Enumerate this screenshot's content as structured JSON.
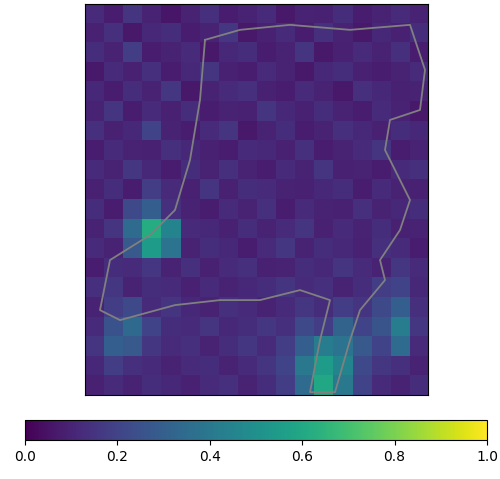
{
  "chart_data": {
    "type": "heatmap",
    "tick_labels": false,
    "cells": [
      [
        0.12,
        0.08,
        0.15,
        0.1,
        0.06,
        0.1,
        0.14,
        0.08,
        0.1,
        0.12,
        0.07,
        0.1,
        0.09,
        0.13,
        0.08,
        0.1,
        0.12,
        0.1
      ],
      [
        0.09,
        0.14,
        0.07,
        0.11,
        0.13,
        0.08,
        0.1,
        0.16,
        0.07,
        0.09,
        0.12,
        0.08,
        0.14,
        0.1,
        0.07,
        0.11,
        0.09,
        0.13
      ],
      [
        0.13,
        0.1,
        0.18,
        0.08,
        0.1,
        0.12,
        0.07,
        0.11,
        0.13,
        0.08,
        0.1,
        0.15,
        0.07,
        0.09,
        0.12,
        0.1,
        0.14,
        0.08
      ],
      [
        0.07,
        0.12,
        0.09,
        0.14,
        0.08,
        0.11,
        0.15,
        0.09,
        0.08,
        0.12,
        0.1,
        0.07,
        0.11,
        0.13,
        0.09,
        0.08,
        0.1,
        0.12
      ],
      [
        0.11,
        0.08,
        0.13,
        0.1,
        0.16,
        0.07,
        0.1,
        0.12,
        0.14,
        0.09,
        0.08,
        0.12,
        0.1,
        0.07,
        0.14,
        0.11,
        0.09,
        0.1
      ],
      [
        0.1,
        0.15,
        0.08,
        0.12,
        0.09,
        0.13,
        0.08,
        0.1,
        0.09,
        0.15,
        0.11,
        0.09,
        0.13,
        0.1,
        0.08,
        0.12,
        0.1,
        0.07
      ],
      [
        0.14,
        0.09,
        0.11,
        0.2,
        0.1,
        0.08,
        0.12,
        0.15,
        0.07,
        0.1,
        0.13,
        0.08,
        0.1,
        0.14,
        0.11,
        0.09,
        0.13,
        0.11
      ],
      [
        0.08,
        0.12,
        0.1,
        0.09,
        0.14,
        0.11,
        0.09,
        0.08,
        0.12,
        0.11,
        0.09,
        0.14,
        0.08,
        0.1,
        0.12,
        0.15,
        0.08,
        0.1
      ],
      [
        0.12,
        0.1,
        0.16,
        0.11,
        0.08,
        0.13,
        0.1,
        0.14,
        0.1,
        0.08,
        0.12,
        0.1,
        0.15,
        0.09,
        0.1,
        0.08,
        0.12,
        0.14
      ],
      [
        0.09,
        0.13,
        0.08,
        0.18,
        0.12,
        0.09,
        0.15,
        0.09,
        0.13,
        0.12,
        0.1,
        0.09,
        0.11,
        0.13,
        0.08,
        0.12,
        0.1,
        0.09
      ],
      [
        0.13,
        0.08,
        0.22,
        0.3,
        0.14,
        0.1,
        0.08,
        0.12,
        0.1,
        0.14,
        0.08,
        0.12,
        0.1,
        0.09,
        0.14,
        0.1,
        0.11,
        0.13
      ],
      [
        0.1,
        0.15,
        0.35,
        0.62,
        0.45,
        0.12,
        0.11,
        0.09,
        0.13,
        0.1,
        0.12,
        0.15,
        0.09,
        0.12,
        0.1,
        0.13,
        0.09,
        0.1
      ],
      [
        0.12,
        0.1,
        0.28,
        0.55,
        0.38,
        0.1,
        0.13,
        0.11,
        0.08,
        0.12,
        0.16,
        0.1,
        0.13,
        0.11,
        0.09,
        0.14,
        0.12,
        0.08
      ],
      [
        0.08,
        0.13,
        0.12,
        0.16,
        0.1,
        0.14,
        0.09,
        0.12,
        0.14,
        0.09,
        0.1,
        0.13,
        0.11,
        0.15,
        0.12,
        0.1,
        0.16,
        0.12
      ],
      [
        0.14,
        0.16,
        0.1,
        0.13,
        0.12,
        0.09,
        0.12,
        0.1,
        0.11,
        0.13,
        0.15,
        0.12,
        0.14,
        0.1,
        0.13,
        0.18,
        0.2,
        0.11
      ],
      [
        0.1,
        0.18,
        0.22,
        0.12,
        0.15,
        0.11,
        0.1,
        0.14,
        0.12,
        0.1,
        0.12,
        0.16,
        0.13,
        0.18,
        0.15,
        0.22,
        0.3,
        0.14
      ],
      [
        0.12,
        0.25,
        0.34,
        0.2,
        0.13,
        0.12,
        0.15,
        0.11,
        0.13,
        0.16,
        0.14,
        0.22,
        0.18,
        0.32,
        0.2,
        0.26,
        0.42,
        0.16
      ],
      [
        0.15,
        0.3,
        0.28,
        0.16,
        0.12,
        0.14,
        0.1,
        0.13,
        0.16,
        0.12,
        0.18,
        0.3,
        0.42,
        0.38,
        0.28,
        0.2,
        0.35,
        0.12
      ],
      [
        0.11,
        0.18,
        0.14,
        0.12,
        0.1,
        0.12,
        0.13,
        0.1,
        0.12,
        0.15,
        0.2,
        0.4,
        0.55,
        0.45,
        0.22,
        0.16,
        0.14,
        0.1
      ],
      [
        0.09,
        0.12,
        0.1,
        0.13,
        0.11,
        0.09,
        0.12,
        0.14,
        0.1,
        0.13,
        0.18,
        0.35,
        0.6,
        0.4,
        0.2,
        0.12,
        0.1,
        0.13
      ]
    ],
    "colorbar_range": [
      0,
      1
    ],
    "colorbar_ticks": [
      {
        "value": 0,
        "label": "0.0"
      },
      {
        "value": 0.2,
        "label": "0.2"
      },
      {
        "value": 0.4,
        "label": "0.4"
      },
      {
        "value": 0.6,
        "label": "0.6"
      },
      {
        "value": 0.8,
        "label": "0.8"
      },
      {
        "value": 1,
        "label": "1.0"
      }
    ]
  }
}
